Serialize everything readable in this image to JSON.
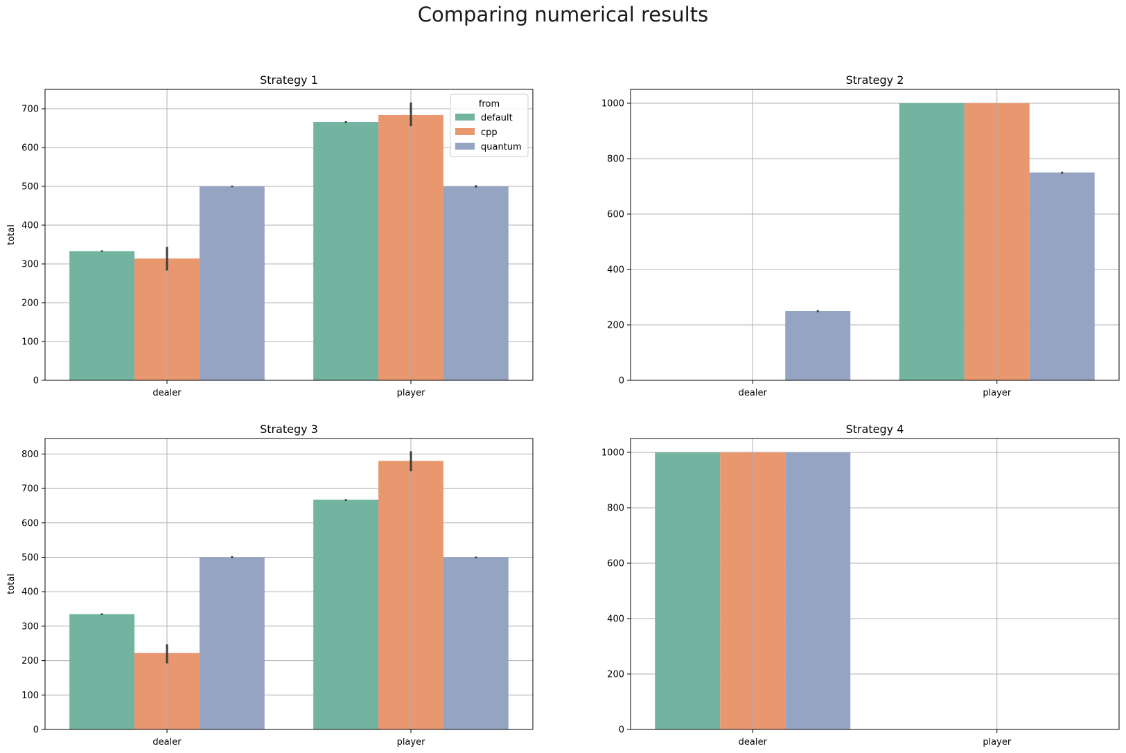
{
  "suptitle": "Comparing numerical results",
  "colors": {
    "default": "#73b4a0",
    "cpp": "#e8976f",
    "quantum": "#95a4c3"
  },
  "chart_data": [
    {
      "type": "bar",
      "title": "Strategy 1",
      "categories": [
        "dealer",
        "player"
      ],
      "ylabel": "total",
      "ylim": [
        0,
        750
      ],
      "yticks": [
        0,
        100,
        200,
        300,
        400,
        500,
        600,
        700
      ],
      "grid": true,
      "legend": {
        "title": "from",
        "placement": "top-right",
        "entries": [
          "default",
          "cpp",
          "quantum"
        ]
      },
      "series": [
        {
          "name": "default",
          "values": [
            333,
            666
          ],
          "err": [
            [
              331,
              335
            ],
            [
              663,
              668
            ]
          ]
        },
        {
          "name": "cpp",
          "values": [
            314,
            684
          ],
          "err": [
            [
              283,
              344
            ],
            [
              655,
              716
            ]
          ]
        },
        {
          "name": "quantum",
          "values": [
            500,
            500
          ],
          "err": [
            [
              498,
              502
            ],
            [
              497,
              503
            ]
          ]
        }
      ]
    },
    {
      "type": "bar",
      "title": "Strategy 2",
      "categories": [
        "dealer",
        "player"
      ],
      "ylabel": "",
      "ylim": [
        0,
        1050
      ],
      "yticks": [
        0,
        200,
        400,
        600,
        800,
        1000
      ],
      "grid": true,
      "series": [
        {
          "name": "default",
          "values": [
            0,
            1000
          ],
          "err": [
            null,
            null
          ]
        },
        {
          "name": "cpp",
          "values": [
            0,
            1000
          ],
          "err": [
            null,
            null
          ]
        },
        {
          "name": "quantum",
          "values": [
            250,
            750
          ],
          "err": [
            [
              246,
              253
            ],
            [
              746,
              753
            ]
          ]
        }
      ]
    },
    {
      "type": "bar",
      "title": "Strategy 3",
      "categories": [
        "dealer",
        "player"
      ],
      "ylabel": "total",
      "ylim": [
        0,
        845
      ],
      "yticks": [
        0,
        100,
        200,
        300,
        400,
        500,
        600,
        700,
        800
      ],
      "grid": true,
      "series": [
        {
          "name": "default",
          "values": [
            335,
            667
          ],
          "err": [
            [
              332,
              337
            ],
            [
              664,
              669
            ]
          ]
        },
        {
          "name": "cpp",
          "values": [
            222,
            780
          ],
          "err": [
            [
              192,
              247
            ],
            [
              750,
              808
            ]
          ]
        },
        {
          "name": "quantum",
          "values": [
            500,
            500
          ],
          "err": [
            [
              498,
              503
            ],
            [
              497,
              502
            ]
          ]
        }
      ]
    },
    {
      "type": "bar",
      "title": "Strategy 4",
      "categories": [
        "dealer",
        "player"
      ],
      "ylabel": "",
      "ylim": [
        0,
        1050
      ],
      "yticks": [
        0,
        200,
        400,
        600,
        800,
        1000
      ],
      "grid": true,
      "series": [
        {
          "name": "default",
          "values": [
            1000,
            0
          ],
          "err": [
            null,
            null
          ]
        },
        {
          "name": "cpp",
          "values": [
            1000,
            0
          ],
          "err": [
            null,
            null
          ]
        },
        {
          "name": "quantum",
          "values": [
            1000,
            0
          ],
          "err": [
            null,
            null
          ]
        }
      ]
    }
  ]
}
